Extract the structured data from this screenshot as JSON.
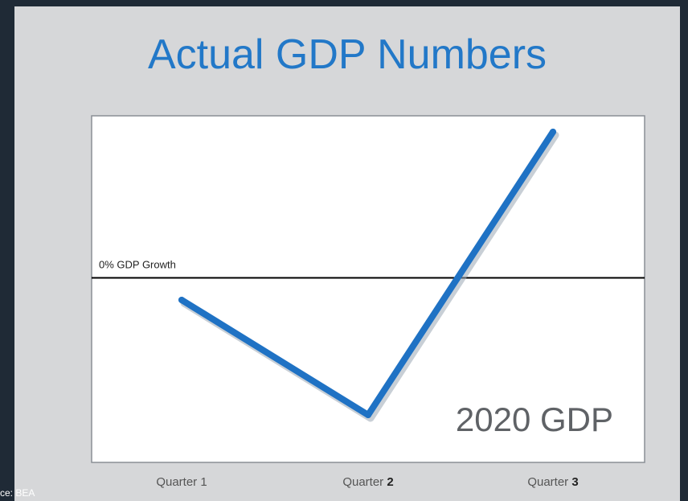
{
  "slide": {
    "title": "Actual GDP Numbers"
  },
  "chart_data": {
    "type": "line",
    "categories": [
      "Quarter 1",
      "Quarter 2",
      "Quarter 3"
    ],
    "category_labels": [
      {
        "prefix": "Quarter 1",
        "bold": ""
      },
      {
        "prefix": "Quarter ",
        "bold": "2"
      },
      {
        "prefix": "Quarter ",
        "bold": "3"
      }
    ],
    "series": [
      {
        "values": [
          -5,
          -31,
          33
        ]
      }
    ],
    "reference_line": {
      "value": 0,
      "label": "0% GDP Growth"
    },
    "annotation": "2020 GDP",
    "ylim": [
      -35,
      35
    ],
    "line_color": "#1f72c4",
    "grid": false,
    "legend": "none"
  },
  "footer": {
    "text": "ce: BEA"
  }
}
